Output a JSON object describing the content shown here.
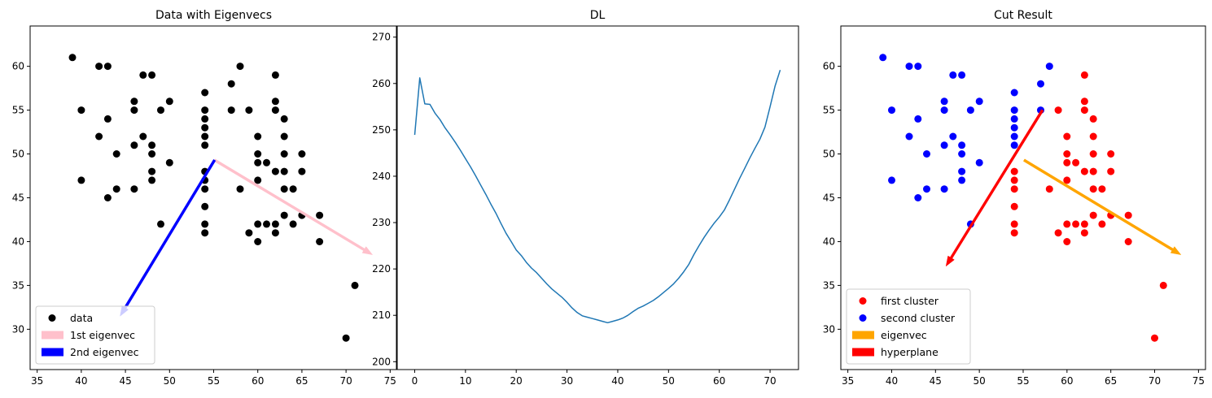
{
  "chart_data": [
    {
      "type": "scatter",
      "title": "Data with Eigenvecs",
      "xlim": [
        34.2,
        75.8
      ],
      "ylim": [
        25.4,
        64.6
      ],
      "xticks": [
        35,
        40,
        45,
        50,
        55,
        60,
        65,
        70,
        75
      ],
      "yticks": [
        30,
        35,
        40,
        45,
        50,
        55,
        60
      ],
      "series": [
        {
          "name": "data",
          "color": "#000000",
          "points": [
            [
              39,
              61
            ],
            [
              40,
              55
            ],
            [
              40,
              47
            ],
            [
              42,
              60
            ],
            [
              42,
              52
            ],
            [
              43,
              60
            ],
            [
              43,
              54
            ],
            [
              43,
              45
            ],
            [
              44,
              50
            ],
            [
              44,
              46
            ],
            [
              46,
              56
            ],
            [
              46,
              55
            ],
            [
              46,
              51
            ],
            [
              46,
              46
            ],
            [
              47,
              59
            ],
            [
              47,
              52
            ],
            [
              48,
              59
            ],
            [
              48,
              51
            ],
            [
              48,
              50
            ],
            [
              48,
              48
            ],
            [
              48,
              47
            ],
            [
              49,
              55
            ],
            [
              49,
              42
            ],
            [
              50,
              56
            ],
            [
              50,
              49
            ],
            [
              54,
              57
            ],
            [
              54,
              55
            ],
            [
              54,
              54
            ],
            [
              54,
              53
            ],
            [
              54,
              52
            ],
            [
              54,
              51
            ],
            [
              54,
              48
            ],
            [
              54,
              47
            ],
            [
              54,
              46
            ],
            [
              54,
              44
            ],
            [
              54,
              42
            ],
            [
              54,
              41
            ],
            [
              57,
              58
            ],
            [
              57,
              55
            ],
            [
              58,
              60
            ],
            [
              58,
              46
            ],
            [
              59,
              55
            ],
            [
              59,
              41
            ],
            [
              60,
              52
            ],
            [
              60,
              50
            ],
            [
              60,
              49
            ],
            [
              60,
              47
            ],
            [
              60,
              42
            ],
            [
              60,
              40
            ],
            [
              61,
              49
            ],
            [
              61,
              42
            ],
            [
              62,
              59
            ],
            [
              62,
              56
            ],
            [
              62,
              55
            ],
            [
              62,
              48
            ],
            [
              62,
              42
            ],
            [
              62,
              41
            ],
            [
              63,
              54
            ],
            [
              63,
              52
            ],
            [
              63,
              50
            ],
            [
              63,
              48
            ],
            [
              63,
              46
            ],
            [
              63,
              43
            ],
            [
              64,
              46
            ],
            [
              64,
              42
            ],
            [
              65,
              50
            ],
            [
              65,
              48
            ],
            [
              65,
              43
            ],
            [
              67,
              43
            ],
            [
              67,
              40
            ],
            [
              70,
              29
            ],
            [
              71,
              35
            ]
          ]
        }
      ],
      "arrows": [
        {
          "name": "1st eigenvec",
          "color": "#ffc0cb",
          "from": [
            55.1,
            49.3
          ],
          "to": [
            73.0,
            38.5
          ]
        },
        {
          "name": "2nd eigenvec",
          "color": "#0000ff",
          "from": [
            55.1,
            49.3
          ],
          "to": [
            44.4,
            31.5
          ]
        }
      ],
      "legend": {
        "placement": "lower-left",
        "entries": [
          {
            "label": "data",
            "kind": "marker",
            "color": "#000000"
          },
          {
            "label": "1st eigenvec",
            "kind": "patch",
            "color": "#ffc0cb"
          },
          {
            "label": "2nd eigenvec",
            "kind": "patch",
            "color": "#0000ff"
          }
        ]
      }
    },
    {
      "type": "line",
      "title": "DL",
      "xlim": [
        -3.6,
        75.6
      ],
      "ylim": [
        198.3,
        272.4
      ],
      "xticks": [
        0,
        10,
        20,
        30,
        40,
        50,
        60,
        70
      ],
      "yticks": [
        200,
        210,
        220,
        230,
        240,
        250,
        260,
        270
      ],
      "series": [
        {
          "color": "#1f77b4",
          "x": [
            0,
            1,
            2,
            3,
            4,
            5,
            6,
            7,
            8,
            9,
            10,
            11,
            12,
            13,
            14,
            15,
            16,
            17,
            18,
            19,
            20,
            21,
            22,
            23,
            24,
            25,
            26,
            27,
            28,
            29,
            30,
            31,
            32,
            33,
            34,
            35,
            36,
            37,
            38,
            39,
            40,
            41,
            42,
            43,
            44,
            45,
            46,
            47,
            48,
            49,
            50,
            51,
            52,
            53,
            54,
            55,
            56,
            57,
            58,
            59,
            60,
            61,
            62,
            63,
            64,
            65,
            66,
            67,
            68,
            69,
            70,
            71,
            72
          ],
          "y": [
            248.9,
            261.2,
            255.6,
            255.5,
            253.6,
            252.2,
            250.4,
            248.9,
            247.3,
            245.6,
            243.8,
            242.0,
            240.1,
            238.1,
            236.1,
            234.0,
            232.0,
            229.8,
            227.7,
            225.9,
            224.1,
            222.9,
            221.4,
            220.2,
            219.2,
            218.0,
            216.8,
            215.7,
            214.8,
            213.9,
            212.8,
            211.6,
            210.6,
            209.9,
            209.6,
            209.3,
            209.0,
            208.7,
            208.4,
            208.7,
            209.0,
            209.4,
            210.0,
            210.8,
            211.5,
            212.0,
            212.6,
            213.2,
            214.0,
            214.9,
            215.8,
            216.8,
            218.0,
            219.4,
            221.0,
            223.1,
            225.0,
            226.8,
            228.4,
            229.9,
            231.2,
            232.7,
            234.9,
            237.2,
            239.5,
            241.7,
            243.9,
            246.0,
            248.0,
            250.6,
            255.0,
            259.5,
            262.9
          ]
        }
      ]
    },
    {
      "type": "scatter",
      "title": "Cut Result",
      "xlim": [
        34.2,
        75.8
      ],
      "ylim": [
        25.4,
        64.6
      ],
      "xticks": [
        35,
        40,
        45,
        50,
        55,
        60,
        65,
        70,
        75
      ],
      "yticks": [
        30,
        35,
        40,
        45,
        50,
        55,
        60
      ],
      "series": [
        {
          "name": "first cluster",
          "color": "#ff0000",
          "points": [
            [
              54,
              48
            ],
            [
              54,
              47
            ],
            [
              54,
              46
            ],
            [
              54,
              44
            ],
            [
              54,
              42
            ],
            [
              54,
              41
            ],
            [
              58,
              46
            ],
            [
              59,
              55
            ],
            [
              59,
              41
            ],
            [
              60,
              52
            ],
            [
              60,
              50
            ],
            [
              60,
              49
            ],
            [
              60,
              47
            ],
            [
              60,
              42
            ],
            [
              60,
              40
            ],
            [
              61,
              49
            ],
            [
              61,
              42
            ],
            [
              62,
              59
            ],
            [
              62,
              56
            ],
            [
              62,
              55
            ],
            [
              62,
              48
            ],
            [
              62,
              42
            ],
            [
              62,
              41
            ],
            [
              63,
              54
            ],
            [
              63,
              52
            ],
            [
              63,
              50
            ],
            [
              63,
              48
            ],
            [
              63,
              46
            ],
            [
              63,
              43
            ],
            [
              64,
              46
            ],
            [
              64,
              42
            ],
            [
              65,
              50
            ],
            [
              65,
              48
            ],
            [
              65,
              43
            ],
            [
              67,
              43
            ],
            [
              67,
              40
            ],
            [
              70,
              29
            ],
            [
              71,
              35
            ]
          ]
        },
        {
          "name": "second cluster",
          "color": "#0000ff",
          "points": [
            [
              39,
              61
            ],
            [
              40,
              55
            ],
            [
              40,
              47
            ],
            [
              42,
              60
            ],
            [
              42,
              52
            ],
            [
              43,
              60
            ],
            [
              43,
              54
            ],
            [
              43,
              45
            ],
            [
              44,
              50
            ],
            [
              44,
              46
            ],
            [
              46,
              56
            ],
            [
              46,
              55
            ],
            [
              46,
              51
            ],
            [
              46,
              46
            ],
            [
              47,
              59
            ],
            [
              47,
              52
            ],
            [
              48,
              59
            ],
            [
              48,
              51
            ],
            [
              48,
              50
            ],
            [
              48,
              48
            ],
            [
              48,
              47
            ],
            [
              49,
              55
            ],
            [
              49,
              42
            ],
            [
              50,
              56
            ],
            [
              50,
              49
            ],
            [
              54,
              57
            ],
            [
              54,
              55
            ],
            [
              54,
              54
            ],
            [
              54,
              53
            ],
            [
              54,
              52
            ],
            [
              54,
              51
            ],
            [
              57,
              58
            ],
            [
              57,
              55
            ],
            [
              58,
              60
            ]
          ]
        }
      ],
      "arrows": [
        {
          "name": "eigenvec",
          "color": "#ffa500",
          "from": [
            55.1,
            49.3
          ],
          "to": [
            73.0,
            38.5
          ]
        },
        {
          "name": "hyperplane",
          "color": "#ff0000",
          "from": [
            57.2,
            55.0
          ],
          "to": [
            46.2,
            37.2
          ]
        }
      ],
      "legend": {
        "placement": "lower-left",
        "entries": [
          {
            "label": "first cluster",
            "kind": "marker",
            "color": "#ff0000"
          },
          {
            "label": "second cluster",
            "kind": "marker",
            "color": "#0000ff"
          },
          {
            "label": "eigenvec",
            "kind": "patch",
            "color": "#ffa500"
          },
          {
            "label": "hyperplane",
            "kind": "patch",
            "color": "#ff0000"
          }
        ]
      }
    }
  ]
}
